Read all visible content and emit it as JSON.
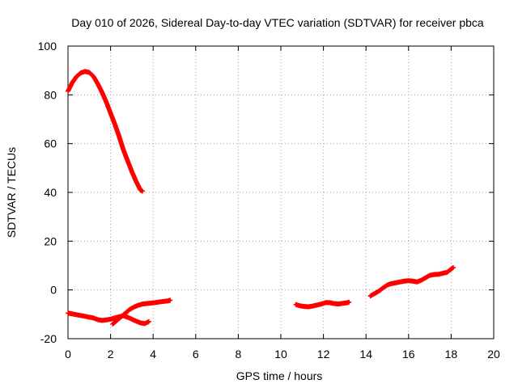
{
  "chart_data": {
    "type": "scatter",
    "title": "Day 010 of 2026, Sidereal Day-to-day VTEC variation (SDTVAR) for receiver pbca",
    "xlabel": "GPS time / hours",
    "ylabel": "SDTVAR / TECUs",
    "xlim": [
      0,
      20
    ],
    "ylim": [
      -20,
      100
    ],
    "xticks": [
      0,
      2,
      4,
      6,
      8,
      10,
      12,
      14,
      16,
      18,
      20
    ],
    "yticks": [
      -20,
      0,
      20,
      40,
      60,
      80,
      100
    ],
    "grid": true,
    "marker": "+",
    "color": "#ff0000",
    "series": [
      {
        "name": "arc-1",
        "points": [
          [
            0.0,
            81.5
          ],
          [
            0.2,
            85.0
          ],
          [
            0.4,
            87.5
          ],
          [
            0.6,
            89.0
          ],
          [
            0.8,
            89.6
          ],
          [
            1.0,
            89.2
          ],
          [
            1.2,
            87.5
          ],
          [
            1.4,
            84.5
          ],
          [
            1.6,
            81.0
          ],
          [
            1.8,
            77.0
          ],
          [
            2.0,
            72.5
          ],
          [
            2.2,
            68.0
          ],
          [
            2.4,
            63.0
          ],
          [
            2.6,
            57.5
          ],
          [
            2.8,
            53.0
          ],
          [
            3.0,
            48.5
          ],
          [
            3.2,
            44.5
          ],
          [
            3.4,
            41.0
          ],
          [
            3.5,
            40.5
          ]
        ]
      },
      {
        "name": "arc-2",
        "points": [
          [
            0.0,
            -9.5
          ],
          [
            0.3,
            -10.0
          ],
          [
            0.6,
            -10.5
          ],
          [
            0.9,
            -11.0
          ],
          [
            1.2,
            -11.5
          ],
          [
            1.4,
            -12.2
          ],
          [
            1.6,
            -12.5
          ],
          [
            1.8,
            -12.3
          ],
          [
            2.0,
            -12.0
          ],
          [
            2.2,
            -11.5
          ],
          [
            2.4,
            -11.0
          ],
          [
            2.6,
            -10.6
          ],
          [
            2.8,
            -11.2
          ],
          [
            3.0,
            -12.0
          ],
          [
            3.2,
            -12.8
          ],
          [
            3.4,
            -13.5
          ],
          [
            3.6,
            -13.8
          ],
          [
            3.8,
            -13.0
          ]
        ]
      },
      {
        "name": "arc-3",
        "points": [
          [
            2.1,
            -14.0
          ],
          [
            2.3,
            -12.5
          ],
          [
            2.5,
            -11.0
          ],
          [
            2.7,
            -9.5
          ],
          [
            2.9,
            -8.0
          ],
          [
            3.1,
            -7.0
          ],
          [
            3.3,
            -6.3
          ],
          [
            3.5,
            -5.8
          ],
          [
            3.8,
            -5.5
          ],
          [
            4.1,
            -5.2
          ],
          [
            4.4,
            -4.8
          ],
          [
            4.7,
            -4.5
          ],
          [
            4.8,
            -4.2
          ]
        ]
      },
      {
        "name": "arc-4",
        "points": [
          [
            10.7,
            -6.0
          ],
          [
            10.9,
            -6.5
          ],
          [
            11.1,
            -6.8
          ],
          [
            11.3,
            -6.9
          ],
          [
            11.5,
            -6.6
          ],
          [
            11.7,
            -6.2
          ],
          [
            11.9,
            -5.8
          ],
          [
            12.1,
            -5.2
          ],
          [
            12.3,
            -5.2
          ],
          [
            12.5,
            -5.6
          ],
          [
            12.7,
            -5.8
          ],
          [
            12.9,
            -5.5
          ],
          [
            13.1,
            -5.3
          ],
          [
            13.2,
            -5.0
          ]
        ]
      },
      {
        "name": "arc-5",
        "points": [
          [
            14.2,
            -2.5
          ],
          [
            14.4,
            -1.5
          ],
          [
            14.6,
            -0.5
          ],
          [
            14.8,
            0.8
          ],
          [
            15.0,
            2.0
          ],
          [
            15.2,
            2.6
          ],
          [
            15.4,
            2.9
          ],
          [
            15.6,
            3.3
          ],
          [
            15.8,
            3.6
          ],
          [
            16.0,
            3.8
          ],
          [
            16.2,
            3.6
          ],
          [
            16.4,
            3.3
          ],
          [
            16.6,
            4.0
          ],
          [
            16.8,
            5.0
          ],
          [
            17.0,
            6.0
          ],
          [
            17.2,
            6.3
          ],
          [
            17.4,
            6.4
          ],
          [
            17.6,
            6.8
          ],
          [
            17.8,
            7.2
          ],
          [
            18.1,
            9.2
          ]
        ]
      }
    ]
  }
}
